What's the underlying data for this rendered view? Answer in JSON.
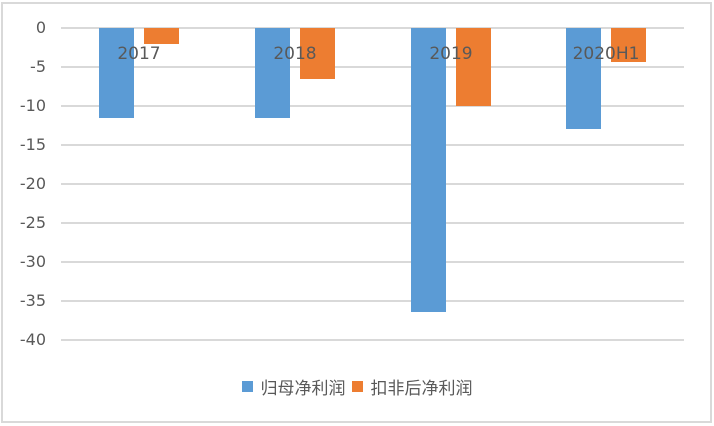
{
  "chart_data": {
    "type": "bar",
    "title": "",
    "xlabel": "",
    "ylabel": "",
    "categories": [
      "2017",
      "2018",
      "2019",
      "2020H1"
    ],
    "series": [
      {
        "name": "归母净利润",
        "color": "#5b9bd5",
        "values": [
          -11.6,
          -11.6,
          -36.4,
          -13.0
        ]
      },
      {
        "name": "扣非后净利润",
        "color": "#ed7d31",
        "values": [
          -2.0,
          -6.5,
          -10.0,
          -4.4
        ]
      }
    ],
    "ylim": [
      -40,
      0
    ],
    "yticks": [
      "0",
      "-5",
      "-10",
      "-15",
      "-20",
      "-25",
      "-30",
      "-35",
      "-40"
    ],
    "grid": true,
    "legend_position": "bottom",
    "category_labels_position": "top-inside"
  },
  "legend": {
    "items": [
      {
        "label": "归母净利润",
        "color": "#5b9bd5"
      },
      {
        "label": "扣非后净利润",
        "color": "#ed7d31"
      }
    ]
  }
}
